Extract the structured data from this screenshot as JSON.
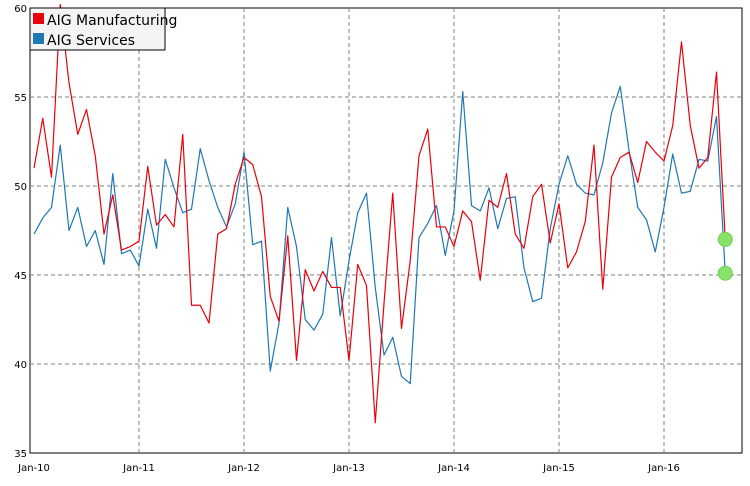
{
  "chart_data": {
    "type": "line",
    "title": "",
    "xlabel": "",
    "ylabel": "",
    "ylim": [
      35,
      60
    ],
    "yticks": [
      35,
      40,
      45,
      50,
      55,
      60
    ],
    "xticks": [
      "Jan-10",
      "Jan-11",
      "Jan-12",
      "Jan-13",
      "Jan-14",
      "Jan-15",
      "Jan-16"
    ],
    "grid": true,
    "legend": "top-left",
    "x_start": "2010-01",
    "x_end": "2016-07",
    "series": [
      {
        "name": "AIG Manufacturing",
        "color": "#e8000b",
        "values": [
          51.0,
          53.8,
          50.5,
          60.2,
          55.8,
          52.9,
          54.3,
          51.7,
          47.3,
          49.5,
          46.4,
          46.6,
          46.9,
          51.1,
          47.8,
          48.4,
          47.7,
          52.9,
          43.3,
          43.3,
          42.3,
          47.3,
          47.6,
          50.1,
          51.6,
          51.2,
          49.4,
          43.8,
          42.4,
          47.2,
          40.2,
          45.3,
          44.1,
          45.2,
          44.3,
          44.3,
          40.2,
          45.6,
          44.4,
          36.7,
          43.4,
          49.6,
          42.0,
          45.8,
          51.7,
          53.2,
          47.7,
          47.7,
          46.6,
          48.6,
          48.0,
          44.7,
          49.2,
          48.8,
          50.7,
          47.3,
          46.5,
          49.4,
          50.1,
          46.8,
          49.0,
          45.4,
          46.3,
          48.0,
          52.3,
          44.2,
          50.5,
          51.6,
          51.9,
          50.2,
          52.5,
          51.9,
          51.4,
          53.4,
          58.1,
          53.4,
          51.0,
          51.6,
          56.4,
          47.0
        ],
        "end_marker": 47.0
      },
      {
        "name": "AIG Services",
        "color": "#1f77b4",
        "values": [
          47.3,
          48.2,
          48.8,
          52.3,
          47.5,
          48.8,
          46.6,
          47.5,
          45.6,
          50.7,
          46.2,
          46.4,
          45.5,
          48.7,
          46.5,
          51.5,
          49.9,
          48.5,
          48.7,
          52.1,
          50.3,
          48.8,
          47.7,
          49.0,
          51.9,
          46.7,
          46.9,
          39.6,
          42.3,
          48.8,
          46.6,
          42.5,
          41.9,
          42.8,
          47.1,
          42.7,
          45.8,
          48.5,
          49.6,
          44.3,
          40.5,
          41.5,
          39.3,
          38.9,
          47.1,
          47.9,
          48.9,
          46.1,
          48.6,
          55.3,
          48.9,
          48.6,
          49.9,
          47.6,
          49.3,
          49.4,
          45.4,
          43.5,
          43.7,
          47.6,
          50.1,
          51.7,
          50.1,
          49.6,
          49.5,
          51.3,
          54.1,
          55.6,
          52.0,
          48.8,
          48.1,
          46.3,
          48.8,
          51.8,
          49.6,
          49.7,
          51.5,
          51.4,
          53.9,
          45.1
        ],
        "end_marker": 45.1
      }
    ]
  }
}
